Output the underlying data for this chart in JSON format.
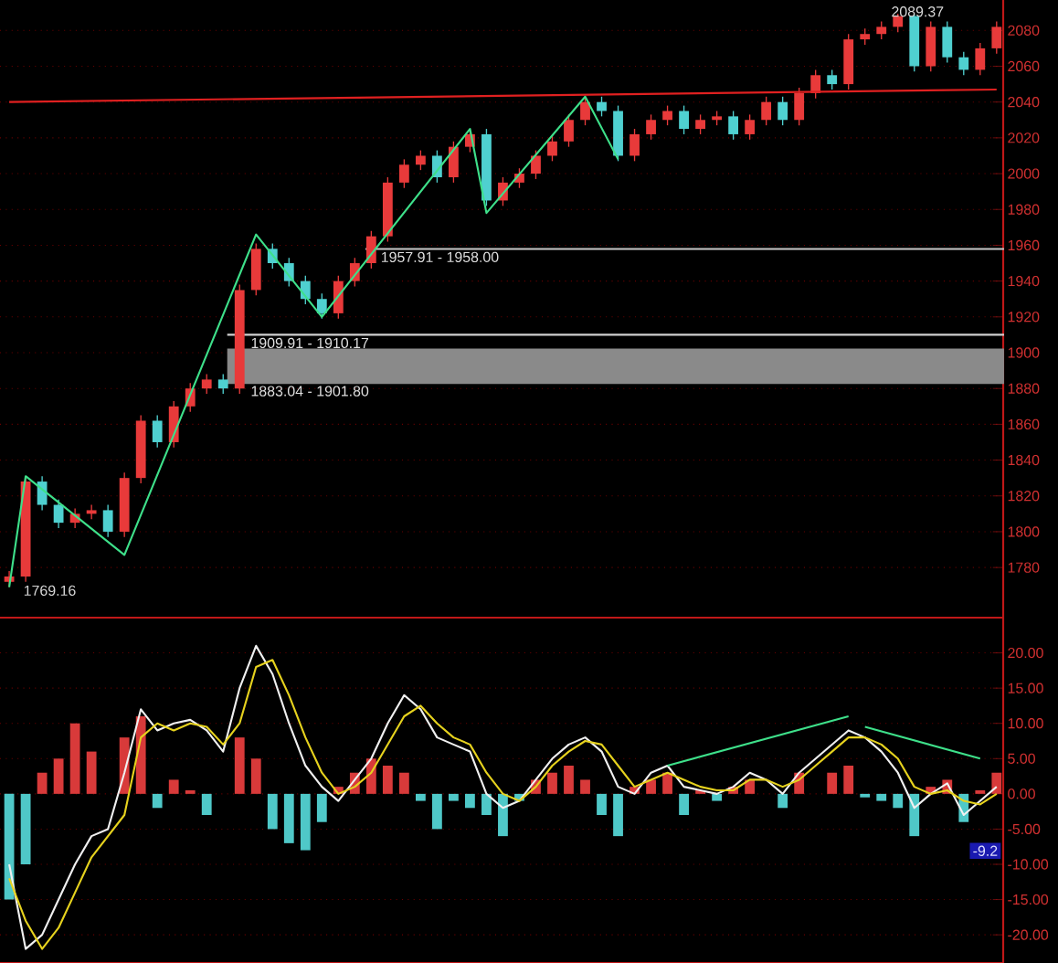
{
  "chart_data": [
    {
      "type": "candlestick",
      "tick_labels": "y",
      "grid": "y",
      "categories": [
        null,
        null,
        null,
        null,
        null,
        null,
        null,
        null,
        null,
        null,
        null,
        null,
        null,
        null,
        null,
        null,
        null,
        null,
        null,
        null,
        null,
        null,
        null,
        null,
        null,
        null,
        null,
        null,
        null,
        null,
        null,
        null,
        null,
        null,
        null,
        null,
        null,
        null,
        null,
        null,
        null,
        null,
        null,
        null,
        null,
        null,
        null,
        null,
        null,
        null,
        null,
        null,
        null,
        null,
        null,
        null,
        null,
        null,
        null,
        null,
        null
      ],
      "ohlc": [
        [
          1772,
          1778,
          1769.16,
          1775
        ],
        [
          1775,
          1831,
          1772,
          1828
        ],
        [
          1828,
          1831,
          1812,
          1815
        ],
        [
          1815,
          1818,
          1802,
          1805
        ],
        [
          1805,
          1813,
          1802,
          1810
        ],
        [
          1810,
          1815,
          1807,
          1812
        ],
        [
          1812,
          1815,
          1797,
          1800
        ],
        [
          1800,
          1833,
          1797,
          1830
        ],
        [
          1830,
          1865,
          1827,
          1862
        ],
        [
          1862,
          1865,
          1847,
          1850
        ],
        [
          1850,
          1873,
          1847,
          1870
        ],
        [
          1870,
          1883,
          1867,
          1880
        ],
        [
          1880,
          1888,
          1877,
          1885
        ],
        [
          1885,
          1888,
          1877,
          1880
        ],
        [
          1880,
          1938,
          1877,
          1935
        ],
        [
          1935,
          1961,
          1932,
          1958
        ],
        [
          1958,
          1961,
          1947,
          1950
        ],
        [
          1950,
          1953,
          1937,
          1940
        ],
        [
          1940,
          1943,
          1927,
          1930
        ],
        [
          1930,
          1933,
          1919,
          1922
        ],
        [
          1922,
          1943,
          1919,
          1940
        ],
        [
          1940,
          1953,
          1937,
          1950
        ],
        [
          1950,
          1968,
          1947,
          1965
        ],
        [
          1965,
          1998,
          1962,
          1995
        ],
        [
          1995,
          2008,
          1992,
          2005
        ],
        [
          2005,
          2013,
          2002,
          2010
        ],
        [
          2010,
          2013,
          1995,
          1998
        ],
        [
          1998,
          2018,
          1995,
          2015
        ],
        [
          2015,
          2025,
          2012,
          2022
        ],
        [
          2022,
          2025,
          1982,
          1985
        ],
        [
          1985,
          1998,
          1982,
          1995
        ],
        [
          1995,
          2003,
          1992,
          2000
        ],
        [
          2000,
          2013,
          1997,
          2010
        ],
        [
          2010,
          2021,
          2007,
          2018
        ],
        [
          2018,
          2033,
          2015,
          2030
        ],
        [
          2030,
          2043,
          2027,
          2040
        ],
        [
          2040,
          2043,
          2032,
          2035
        ],
        [
          2035,
          2038,
          2007,
          2010
        ],
        [
          2010,
          2025,
          2007,
          2022
        ],
        [
          2022,
          2033,
          2019,
          2030
        ],
        [
          2030,
          2038,
          2027,
          2035
        ],
        [
          2035,
          2038,
          2022,
          2025
        ],
        [
          2025,
          2033,
          2022,
          2030
        ],
        [
          2030,
          2035,
          2027,
          2032
        ],
        [
          2032,
          2035,
          2019,
          2022
        ],
        [
          2022,
          2033,
          2019,
          2030
        ],
        [
          2030,
          2043,
          2027,
          2040
        ],
        [
          2040,
          2043,
          2027,
          2030
        ],
        [
          2030,
          2048,
          2027,
          2045
        ],
        [
          2045,
          2058,
          2042,
          2055
        ],
        [
          2055,
          2058,
          2047,
          2050
        ],
        [
          2050,
          2078,
          2047,
          2075
        ],
        [
          2075,
          2081,
          2072,
          2078
        ],
        [
          2078,
          2085,
          2075,
          2082
        ],
        [
          2082,
          2089.37,
          2079,
          2088
        ],
        [
          2088,
          2089,
          2057,
          2060
        ],
        [
          2060,
          2085,
          2057,
          2082
        ],
        [
          2082,
          2085,
          2062,
          2065
        ],
        [
          2065,
          2068,
          2055,
          2058
        ],
        [
          2058,
          2073,
          2055,
          2070
        ],
        [
          2070,
          2085,
          2067,
          2082
        ]
      ],
      "colors": [
        "#e83a3a",
        "#e83a3a",
        "#4fd0d0",
        "#4fd0d0",
        "#e83a3a",
        "#e83a3a",
        "#4fd0d0",
        "#e83a3a",
        "#e83a3a",
        "#4fd0d0",
        "#e83a3a",
        "#e83a3a",
        "#e83a3a",
        "#4fd0d0",
        "#e83a3a",
        "#e83a3a",
        "#4fd0d0",
        "#4fd0d0",
        "#4fd0d0",
        "#4fd0d0",
        "#e83a3a",
        "#e83a3a",
        "#e83a3a",
        "#e83a3a",
        "#e83a3a",
        "#e83a3a",
        "#4fd0d0",
        "#e83a3a",
        "#e83a3a",
        "#4fd0d0",
        "#e83a3a",
        "#e83a3a",
        "#e83a3a",
        "#e83a3a",
        "#e83a3a",
        "#e83a3a",
        "#4fd0d0",
        "#4fd0d0",
        "#e83a3a",
        "#e83a3a",
        "#e83a3a",
        "#4fd0d0",
        "#e83a3a",
        "#e83a3a",
        "#4fd0d0",
        "#e83a3a",
        "#e83a3a",
        "#4fd0d0",
        "#e83a3a",
        "#e83a3a",
        "#4fd0d0",
        "#e83a3a",
        "#e83a3a",
        "#e83a3a",
        "#e83a3a",
        "#4fd0d0",
        "#e83a3a",
        "#4fd0d0",
        "#4fd0d0",
        "#e83a3a",
        "#e83a3a"
      ],
      "series": [
        {
          "type": "line",
          "color": "#e02020",
          "values": [
            2040,
            null,
            null,
            null,
            null,
            null,
            null,
            null,
            null,
            null,
            null,
            null,
            null,
            null,
            null,
            null,
            null,
            null,
            null,
            null,
            null,
            null,
            null,
            null,
            null,
            null,
            null,
            null,
            null,
            null,
            null,
            null,
            null,
            null,
            null,
            null,
            null,
            null,
            null,
            null,
            null,
            null,
            null,
            null,
            null,
            null,
            null,
            null,
            null,
            null,
            null,
            null,
            null,
            null,
            null,
            null,
            null,
            null,
            null,
            null,
            2047
          ]
        },
        {
          "type": "line",
          "color": "#3ee08a",
          "values": [
            1769,
            1831,
            null,
            null,
            null,
            null,
            null,
            1787,
            null,
            null,
            null,
            null,
            null,
            null,
            null,
            1966,
            null,
            null,
            null,
            1920,
            null,
            null,
            null,
            null,
            null,
            null,
            null,
            null,
            2025,
            1978,
            null,
            null,
            null,
            null,
            null,
            2043,
            null,
            2008,
            null,
            null,
            null,
            null,
            null,
            null,
            null,
            null,
            null,
            null,
            null,
            null,
            null,
            null,
            null,
            null,
            null,
            null,
            null,
            null,
            null,
            null,
            null
          ]
        }
      ],
      "ylim": [
        1752,
        2097
      ],
      "yticks": [
        1780,
        1800,
        1820,
        1840,
        1860,
        1880,
        1900,
        1920,
        1940,
        1960,
        1980,
        2000,
        2020,
        2040,
        2060,
        2080
      ],
      "bands": [
        {
          "axis": "y",
          "from": 1883.04,
          "to": 1901.8,
          "label": "1883.04 - 1901.80",
          "color": "#8a8a8a"
        },
        {
          "axis": "y",
          "from": 1909.91,
          "to": 1910.17,
          "label": "1909.91 - 1910.17",
          "color": "#d0d0d0"
        },
        {
          "axis": "y",
          "from": 1957.91,
          "to": 1958.0,
          "label": "1957.91 - 1958.00",
          "color": "#c8c8c8"
        }
      ],
      "annotations": [
        "1769.16",
        "2089.37"
      ]
    },
    {
      "type": "bar",
      "tick_labels": "y",
      "grid": "y",
      "categories": [
        null,
        null,
        null,
        null,
        null,
        null,
        null,
        null,
        null,
        null,
        null,
        null,
        null,
        null,
        null,
        null,
        null,
        null,
        null,
        null,
        null,
        null,
        null,
        null,
        null,
        null,
        null,
        null,
        null,
        null,
        null,
        null,
        null,
        null,
        null,
        null,
        null,
        null,
        null,
        null,
        null,
        null,
        null,
        null,
        null,
        null,
        null,
        null,
        null,
        null,
        null,
        null,
        null,
        null,
        null,
        null,
        null,
        null,
        null,
        null,
        null
      ],
      "values": [
        -15,
        -10,
        3,
        5,
        10,
        6,
        0,
        8,
        11,
        -2,
        2,
        0.5,
        -3,
        0,
        8,
        5,
        -5,
        -7,
        -8,
        -4,
        1,
        3,
        5,
        4,
        3,
        -1,
        -5,
        -1,
        -2,
        -3,
        -6,
        -1,
        2,
        3,
        4,
        2,
        -3,
        -6,
        1,
        2,
        3,
        -3,
        0.5,
        -1,
        1,
        2,
        0,
        -2,
        3,
        0,
        3,
        4,
        -0.5,
        -1,
        -2,
        -6,
        1,
        2,
        -4,
        0.5,
        3
      ],
      "colors": [
        "#4fc8c8",
        "#4fc8c8",
        "#d83a3a",
        "#d83a3a",
        "#d83a3a",
        "#d83a3a",
        "#d83a3a",
        "#d83a3a",
        "#d83a3a",
        "#4fc8c8",
        "#d83a3a",
        "#d83a3a",
        "#4fc8c8",
        "#d83a3a",
        "#d83a3a",
        "#d83a3a",
        "#4fc8c8",
        "#4fc8c8",
        "#4fc8c8",
        "#4fc8c8",
        "#d83a3a",
        "#d83a3a",
        "#d83a3a",
        "#d83a3a",
        "#d83a3a",
        "#4fc8c8",
        "#4fc8c8",
        "#4fc8c8",
        "#4fc8c8",
        "#4fc8c8",
        "#4fc8c8",
        "#4fc8c8",
        "#d83a3a",
        "#d83a3a",
        "#d83a3a",
        "#d83a3a",
        "#4fc8c8",
        "#4fc8c8",
        "#d83a3a",
        "#d83a3a",
        "#d83a3a",
        "#4fc8c8",
        "#d83a3a",
        "#4fc8c8",
        "#d83a3a",
        "#d83a3a",
        "#d83a3a",
        "#4fc8c8",
        "#d83a3a",
        "#d83a3a",
        "#d83a3a",
        "#d83a3a",
        "#4fc8c8",
        "#4fc8c8",
        "#4fc8c8",
        "#4fc8c8",
        "#d83a3a",
        "#d83a3a",
        "#4fc8c8",
        "#d83a3a",
        "#d83a3a"
      ],
      "series": [
        {
          "type": "line",
          "color": "#f0f0f0",
          "values": [
            -10,
            -22,
            -20,
            -15,
            -10,
            -6,
            -5,
            3,
            12,
            9,
            10,
            10.5,
            9,
            6,
            15,
            21,
            17,
            10,
            4,
            1,
            -1,
            2,
            5,
            10,
            14,
            12,
            8,
            7,
            6,
            0,
            -2,
            -1,
            2,
            5,
            7,
            8,
            6,
            1,
            0,
            3,
            4,
            1,
            0.5,
            0,
            1,
            3,
            2,
            0,
            3,
            5,
            7,
            9,
            8,
            6,
            3,
            -2,
            0,
            1.5,
            -3,
            -1,
            1
          ]
        },
        {
          "type": "line",
          "color": "#e6d21e",
          "values": [
            -12,
            -18,
            -22,
            -19,
            -14,
            -9,
            -6,
            -3,
            8,
            10,
            9,
            10,
            9.5,
            7,
            10,
            18,
            19,
            14,
            8,
            3,
            0,
            1,
            3,
            7,
            11,
            12.5,
            10,
            8,
            7,
            3,
            0,
            -1,
            1,
            4,
            6,
            7.5,
            7,
            4,
            1,
            2,
            3,
            2,
            1,
            0.5,
            0.5,
            2,
            2,
            1,
            2,
            4,
            6,
            8,
            8,
            7,
            5,
            1,
            0,
            0.5,
            -1,
            -1.5,
            0
          ]
        },
        {
          "type": "line",
          "color": "#3ee08a",
          "values": [
            null,
            null,
            null,
            null,
            null,
            null,
            null,
            null,
            null,
            null,
            null,
            null,
            null,
            null,
            null,
            null,
            null,
            null,
            null,
            null,
            null,
            null,
            null,
            null,
            null,
            null,
            null,
            null,
            null,
            null,
            null,
            null,
            null,
            null,
            null,
            null,
            null,
            null,
            null,
            null,
            4,
            null,
            null,
            null,
            null,
            null,
            null,
            null,
            null,
            null,
            null,
            11,
            null,
            null,
            null,
            null,
            null,
            null,
            null,
            null,
            null
          ]
        },
        {
          "type": "line",
          "color": "#3ee08a",
          "values": [
            null,
            null,
            null,
            null,
            null,
            null,
            null,
            null,
            null,
            null,
            null,
            null,
            null,
            null,
            null,
            null,
            null,
            null,
            null,
            null,
            null,
            null,
            null,
            null,
            null,
            null,
            null,
            null,
            null,
            null,
            null,
            null,
            null,
            null,
            null,
            null,
            null,
            null,
            null,
            null,
            null,
            null,
            null,
            null,
            null,
            null,
            null,
            null,
            null,
            null,
            null,
            null,
            9.5,
            null,
            null,
            null,
            null,
            null,
            null,
            5,
            null
          ]
        }
      ],
      "ylim": [
        -24,
        25
      ],
      "yticks": [
        {
          "value": -20,
          "label": "-20.00"
        },
        {
          "value": -15,
          "label": "-15.00"
        },
        {
          "value": -10,
          "label": "-10.00"
        },
        {
          "value": -5,
          "label": "-5.00"
        },
        {
          "value": 0,
          "label": "0.00"
        },
        {
          "value": 5,
          "label": "5.00"
        },
        {
          "value": 10,
          "label": "10.00"
        },
        {
          "value": 15,
          "label": "15.00"
        },
        {
          "value": 20,
          "label": "20.00"
        }
      ],
      "annotations": [
        "-9.2"
      ]
    }
  ]
}
